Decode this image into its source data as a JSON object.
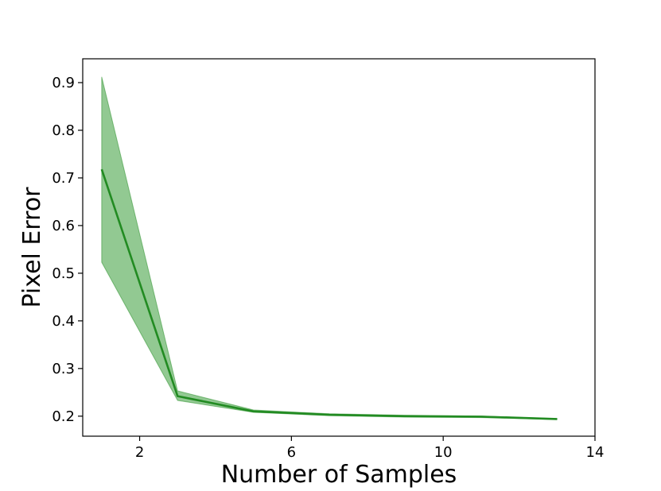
{
  "chart_data": {
    "type": "line",
    "title": "",
    "xlabel": "Number of Samples",
    "ylabel": "Pixel Error",
    "xlim": [
      0.5,
      14
    ],
    "ylim": [
      0.158,
      0.95
    ],
    "xticks": [
      2,
      6,
      10,
      14
    ],
    "xtick_labels": [
      "2",
      "6",
      "10",
      "14"
    ],
    "yticks": [
      0.2,
      0.3,
      0.4,
      0.5,
      0.6,
      0.7,
      0.8,
      0.9
    ],
    "ytick_labels": [
      "0.2",
      "0.3",
      "0.4",
      "0.5",
      "0.6",
      "0.7",
      "0.8",
      "0.9"
    ],
    "grid": false,
    "legend": "none",
    "series": [
      {
        "x": [
          1,
          3,
          5,
          7,
          9,
          11,
          13
        ],
        "y": [
          0.718,
          0.242,
          0.21,
          0.203,
          0.2,
          0.199,
          0.194
        ],
        "upper": [
          0.912,
          0.253,
          0.213,
          0.205,
          0.202,
          0.2,
          0.195
        ],
        "lower": [
          0.523,
          0.233,
          0.208,
          0.201,
          0.198,
          0.197,
          0.193
        ],
        "color": "#228b22",
        "band_color": "#7fbf7f"
      }
    ]
  }
}
